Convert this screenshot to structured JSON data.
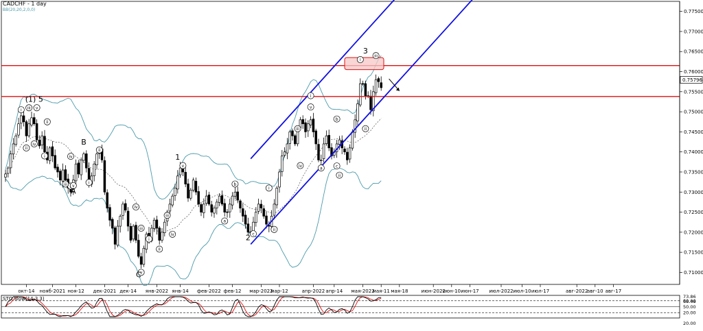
{
  "header": {
    "title": "CADCHF - 1 day",
    "indicator_params": "BB(20,20,2,0,0)"
  },
  "oscillator_label": "STO Slow(14,3,3)",
  "colors": {
    "candle": "#000000",
    "band": "#4a9aaa",
    "channel": "#1010e0",
    "level": "#e01010",
    "box_fill": "#f6c8c8",
    "osc_k": "#000000",
    "osc_d": "#e01010",
    "grid": "#c0c0c0",
    "signal_up": "#2a9a2a"
  },
  "chart_data": {
    "type": "line",
    "title": "CADCHF - 1 day",
    "xlabel": "",
    "ylabel": "",
    "ylim": [
      0.707,
      0.7775
    ],
    "grid": false,
    "x_ticks": [
      {
        "i": 8,
        "label": "окт-14"
      },
      {
        "i": 18,
        "label": "нояб-2021"
      },
      {
        "i": 27,
        "label": "ноя-12"
      },
      {
        "i": 38,
        "label": "дек-2021"
      },
      {
        "i": 47,
        "label": "дек-14"
      },
      {
        "i": 58,
        "label": "янв-2022"
      },
      {
        "i": 67,
        "label": "янв-14"
      },
      {
        "i": 78,
        "label": "фев-2022"
      },
      {
        "i": 87,
        "label": "фев-12"
      },
      {
        "i": 98,
        "label": "мар-2022"
      },
      {
        "i": 105,
        "label": "мар-12"
      },
      {
        "i": 118,
        "label": "апр-2022"
      },
      {
        "i": 126,
        "label": "апр-14"
      },
      {
        "i": 137,
        "label": "мая-2022"
      },
      {
        "i": 144,
        "label": "мая-11"
      },
      {
        "i": 151,
        "label": "мая-18"
      },
      {
        "i": 164,
        "label": "июн-2022"
      },
      {
        "i": 171,
        "label": "июн-10"
      },
      {
        "i": 178,
        "label": "июн-17"
      },
      {
        "i": 190,
        "label": "июл-2022"
      },
      {
        "i": 198,
        "label": "июл-10"
      },
      {
        "i": 205,
        "label": "июл-17"
      },
      {
        "i": 219,
        "label": "авг-2022"
      },
      {
        "i": 226,
        "label": "авг-10"
      },
      {
        "i": 233,
        "label": "авг-17"
      }
    ],
    "y_ticks": [
      "0.71000",
      "0.71500",
      "0.72000",
      "0.72500",
      "0.73000",
      "0.73500",
      "0.74000",
      "0.74500",
      "0.75000",
      "0.75500",
      "0.76000",
      "0.76500",
      "0.77000",
      "0.77500"
    ],
    "last_price": "0.75796",
    "key_points": [
      {
        "label": "(1) 5",
        "i": 11,
        "y": 0.7525
      },
      {
        "label": "A",
        "i": 26,
        "y": 0.7296
      },
      {
        "label": "B",
        "i": 30,
        "y": 0.7418
      },
      {
        "label": "C",
        "i": 51,
        "y": 0.7088
      },
      {
        "label": "1",
        "i": 66,
        "y": 0.7381
      },
      {
        "label": "2",
        "i": 93,
        "y": 0.718
      },
      {
        "label": "3",
        "i": 138,
        "y": 0.7645
      }
    ],
    "horizontal_levels": [
      0.7615,
      0.7538
    ],
    "resistance_zone": [
      0.7605,
      0.7635
    ],
    "channel": {
      "upper": [
        [
          94.0,
          0.7383
        ],
        [
          155.0,
          0.7822
        ]
      ],
      "lower": [
        [
          94.0,
          0.717
        ],
        [
          186.0,
          0.783
        ]
      ]
    },
    "wave_labels": [
      {
        "t": "i",
        "i": 6,
        "y": 0.7505
      },
      {
        "t": "iii",
        "i": 9,
        "y": 0.751
      },
      {
        "t": "v",
        "i": 12,
        "y": 0.751
      },
      {
        "t": "ii",
        "i": 8,
        "y": 0.741
      },
      {
        "t": "iv",
        "i": 11,
        "y": 0.742
      },
      {
        "t": "i",
        "i": 15,
        "y": 0.739
      },
      {
        "t": "ii",
        "i": 16,
        "y": 0.7475
      },
      {
        "t": "ii",
        "i": 25,
        "y": 0.7315
      },
      {
        "t": "iv",
        "i": 25,
        "y": 0.7389
      },
      {
        "t": "iii",
        "i": 23,
        "y": 0.732
      },
      {
        "t": "v",
        "i": 26,
        "y": 0.7316
      },
      {
        "t": "i",
        "i": 32,
        "y": 0.7324
      },
      {
        "t": "ii",
        "i": 36,
        "y": 0.7405
      },
      {
        "t": "iv",
        "i": 50,
        "y": 0.7263
      },
      {
        "t": "i",
        "i": 55,
        "y": 0.7183
      },
      {
        "t": "iii",
        "i": 52,
        "y": 0.721
      },
      {
        "t": "v",
        "i": 52,
        "y": 0.71
      },
      {
        "t": "ii",
        "i": 59,
        "y": 0.7158
      },
      {
        "t": "v",
        "i": 68,
        "y": 0.7366
      },
      {
        "t": "iii",
        "i": 62,
        "y": 0.7242
      },
      {
        "t": "iv",
        "i": 64,
        "y": 0.7195
      },
      {
        "t": "a",
        "i": 84,
        "y": 0.7228
      },
      {
        "t": "b",
        "i": 88,
        "y": 0.732
      },
      {
        "t": "c",
        "i": 95,
        "y": 0.7196
      },
      {
        "t": "i",
        "i": 101,
        "y": 0.731
      },
      {
        "t": "ii",
        "i": 103,
        "y": 0.7207
      },
      {
        "t": "iii",
        "i": 112,
        "y": 0.7458
      },
      {
        "t": "iv",
        "i": 113,
        "y": 0.7366
      },
      {
        "t": "v",
        "i": 117,
        "y": 0.7512
      },
      {
        "t": "i",
        "i": 117,
        "y": 0.754
      },
      {
        "t": "a",
        "i": 121,
        "y": 0.736
      },
      {
        "t": "b",
        "i": 127,
        "y": 0.7482
      },
      {
        "t": "c",
        "i": 127,
        "y": 0.7365
      },
      {
        "t": "ii",
        "i": 128,
        "y": 0.7342
      },
      {
        "t": "i",
        "i": 136,
        "y": 0.763
      },
      {
        "t": "ii",
        "i": 138,
        "y": 0.7458
      },
      {
        "t": "iii",
        "i": 142,
        "y": 0.764
      }
    ],
    "series": [
      {
        "name": "Close",
        "values": [
          0.7345,
          0.736,
          0.7395,
          0.742,
          0.744,
          0.747,
          0.749,
          0.7475,
          0.744,
          0.747,
          0.7485,
          0.747,
          0.743,
          0.7415,
          0.744,
          0.74,
          0.738,
          0.741,
          0.739,
          0.736,
          0.735,
          0.733,
          0.7355,
          0.733,
          0.731,
          0.73,
          0.733,
          0.737,
          0.7345,
          0.738,
          0.7395,
          0.736,
          0.732,
          0.734,
          0.737,
          0.7395,
          0.7405,
          0.738,
          0.73,
          0.726,
          0.723,
          0.721,
          0.717,
          0.7215,
          0.724,
          0.727,
          0.7255,
          0.7215,
          0.718,
          0.7215,
          0.718,
          0.714,
          0.712,
          0.716,
          0.7195,
          0.718,
          0.721,
          0.723,
          0.721,
          0.718,
          0.72,
          0.7225,
          0.725,
          0.727,
          0.729,
          0.731,
          0.734,
          0.736,
          0.735,
          0.732,
          0.7285,
          0.7305,
          0.733,
          0.73,
          0.727,
          0.725,
          0.727,
          0.729,
          0.727,
          0.725,
          0.726,
          0.7275,
          0.729,
          0.727,
          0.725,
          0.725,
          0.727,
          0.729,
          0.73,
          0.728,
          0.726,
          0.724,
          0.722,
          0.72,
          0.72,
          0.7225,
          0.725,
          0.727,
          0.726,
          0.724,
          0.722,
          0.7215,
          0.724,
          0.727,
          0.731,
          0.735,
          0.739,
          0.74,
          0.742,
          0.745,
          0.744,
          0.742,
          0.746,
          0.748,
          0.747,
          0.745,
          0.747,
          0.748,
          0.745,
          0.742,
          0.738,
          0.738,
          0.742,
          0.744,
          0.741,
          0.739,
          0.74,
          0.742,
          0.743,
          0.741,
          0.74,
          0.738,
          0.741,
          0.745,
          0.748,
          0.752,
          0.757,
          0.757,
          0.754,
          0.754,
          0.7505,
          0.755,
          0.758,
          0.7575,
          0.756
        ]
      }
    ],
    "oscillator": {
      "ylim": [
        0,
        100
      ],
      "levels": [
        80,
        50,
        20
      ],
      "tick_labels": [
        "73.86",
        "68.48",
        "80.00",
        "50.00",
        "20.00",
        "20.00"
      ]
    }
  }
}
